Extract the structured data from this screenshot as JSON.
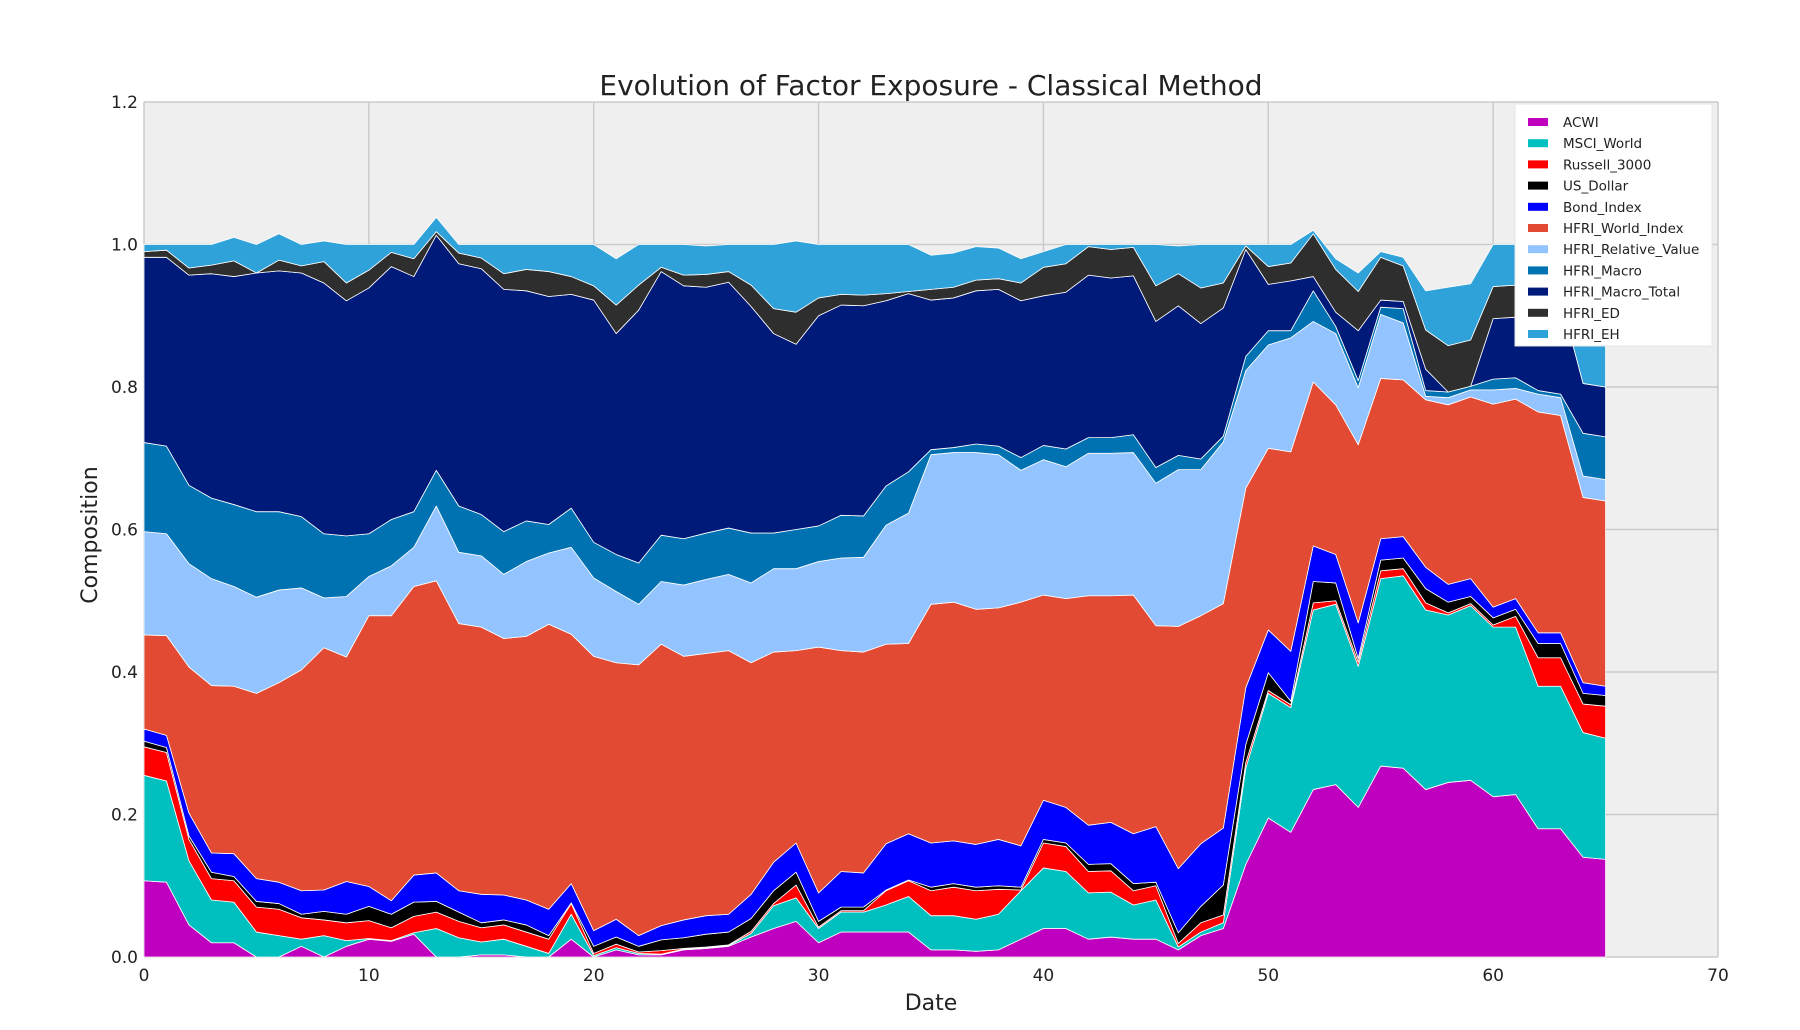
{
  "chart_data": {
    "type": "area",
    "stacked": true,
    "title": "Evolution of Factor Exposure - Classical Method",
    "xlabel": "Date",
    "ylabel": "Composition",
    "xlim": [
      0,
      70
    ],
    "ylim": [
      0,
      1.2
    ],
    "x_ticks": [
      "0",
      "10",
      "20",
      "30",
      "40",
      "50",
      "60",
      "70"
    ],
    "y_ticks": [
      "0.0",
      "0.2",
      "0.4",
      "0.6",
      "0.8",
      "1.0",
      "1.2"
    ],
    "grid": true,
    "legend_position": "top-right",
    "x": [
      0,
      1,
      2,
      3,
      4,
      5,
      6,
      7,
      8,
      9,
      10,
      11,
      12,
      13,
      14,
      15,
      16,
      17,
      18,
      19,
      20,
      21,
      22,
      23,
      24,
      25,
      26,
      27,
      28,
      29,
      30,
      31,
      32,
      33,
      34,
      35,
      36,
      37,
      38,
      39,
      40,
      41,
      42,
      43,
      44,
      45,
      46,
      47,
      48,
      49,
      50,
      51,
      52,
      53,
      54,
      55,
      56,
      57,
      58,
      59,
      60,
      61,
      62,
      63,
      64,
      65
    ],
    "series": [
      {
        "name": "ACWI",
        "color": "#bf00bf",
        "values": [
          0.107,
          0.105,
          0.045,
          0.02,
          0.02,
          0,
          0,
          0.015,
          0,
          0.015,
          0.025,
          0.022,
          0.032,
          0,
          0,
          0.003,
          0.003,
          0,
          0,
          0.025,
          0,
          0.01,
          0.003,
          0.003,
          0.01,
          0.012,
          0.015,
          0.028,
          0.04,
          0.05,
          0.02,
          0.035,
          0.035,
          0.035,
          0.035,
          0.01,
          0.01,
          0.008,
          0.01,
          0.025,
          0.04,
          0.04,
          0.025,
          0.028,
          0.025,
          0.025,
          0.01,
          0.03,
          0.04,
          0.13,
          0.195,
          0.175,
          0.235,
          0.242,
          0.21,
          0.268,
          0.265,
          0.235,
          0.245,
          0.248,
          0.225,
          0.228,
          0.18,
          0.18,
          0.14,
          0.137
        ]
      },
      {
        "name": "MSCI_World",
        "color": "#00bfbf",
        "values": [
          0.148,
          0.142,
          0.09,
          0.06,
          0.057,
          0.035,
          0.03,
          0.01,
          0.03,
          0.008,
          0.001,
          0.001,
          0.002,
          0.04,
          0.027,
          0.018,
          0.022,
          0.015,
          0.005,
          0.035,
          0.002,
          0.003,
          0.002,
          0.001,
          0.001,
          0.001,
          0.001,
          0.005,
          0.032,
          0.033,
          0.02,
          0.028,
          0.028,
          0.038,
          0.05,
          0.048,
          0.048,
          0.045,
          0.05,
          0.068,
          0.085,
          0.08,
          0.065,
          0.063,
          0.048,
          0.055,
          0.004,
          0.005,
          0.008,
          0.135,
          0.175,
          0.175,
          0.252,
          0.253,
          0.198,
          0.263,
          0.27,
          0.252,
          0.235,
          0.245,
          0.238,
          0.235,
          0.2,
          0.2,
          0.175,
          0.17
        ]
      },
      {
        "name": "Russell_3000",
        "color": "#ff0000",
        "values": [
          0.04,
          0.04,
          0.03,
          0.03,
          0.03,
          0.035,
          0.037,
          0.03,
          0.022,
          0.025,
          0.025,
          0.018,
          0.023,
          0.023,
          0.023,
          0.02,
          0.02,
          0.02,
          0.02,
          0.015,
          0.003,
          0.005,
          0.002,
          0.005,
          0.001,
          0.001,
          0.001,
          0.003,
          0.003,
          0.018,
          0.002,
          0.002,
          0.002,
          0.02,
          0.022,
          0.035,
          0.04,
          0.04,
          0.035,
          0.001,
          0.035,
          0.035,
          0.03,
          0.03,
          0.02,
          0.02,
          0.005,
          0.013,
          0.011,
          0.008,
          0.004,
          0.004,
          0.01,
          0.005,
          0.006,
          0.011,
          0.01,
          0.01,
          0.003,
          0.003,
          0.003,
          0.015,
          0.04,
          0.04,
          0.04,
          0.045
        ]
      },
      {
        "name": "US_Dollar",
        "color": "#000000",
        "values": [
          0.008,
          0.007,
          0.005,
          0.009,
          0.006,
          0.008,
          0.008,
          0.005,
          0.012,
          0.012,
          0.02,
          0.019,
          0.02,
          0.015,
          0.013,
          0.007,
          0.007,
          0.01,
          0.005,
          0.001,
          0.01,
          0.01,
          0.008,
          0.015,
          0.015,
          0.018,
          0.018,
          0.018,
          0.018,
          0.018,
          0.008,
          0.005,
          0.005,
          0.001,
          0.001,
          0.005,
          0.005,
          0.005,
          0.005,
          0.004,
          0.005,
          0.005,
          0.01,
          0.01,
          0.01,
          0.005,
          0.015,
          0.023,
          0.042,
          0.025,
          0.025,
          0.005,
          0.03,
          0.025,
          0.005,
          0.015,
          0.015,
          0.02,
          0.015,
          0.01,
          0.01,
          0.01,
          0.02,
          0.02,
          0.015,
          0.015
        ]
      },
      {
        "name": "Bond_Index",
        "color": "#0000ff",
        "values": [
          0.017,
          0.017,
          0.032,
          0.027,
          0.032,
          0.032,
          0.03,
          0.033,
          0.03,
          0.046,
          0.028,
          0.019,
          0.038,
          0.04,
          0.03,
          0.04,
          0.035,
          0.035,
          0.037,
          0.027,
          0.022,
          0.025,
          0.015,
          0.02,
          0.025,
          0.026,
          0.025,
          0.034,
          0.04,
          0.041,
          0.04,
          0.05,
          0.048,
          0.065,
          0.065,
          0.062,
          0.06,
          0.06,
          0.065,
          0.058,
          0.055,
          0.05,
          0.055,
          0.058,
          0.07,
          0.078,
          0.09,
          0.088,
          0.08,
          0.08,
          0.06,
          0.07,
          0.05,
          0.04,
          0.05,
          0.03,
          0.03,
          0.03,
          0.025,
          0.025,
          0.015,
          0.015,
          0.015,
          0.015,
          0.015,
          0.013
        ]
      },
      {
        "name": "HFRI_World_Index",
        "color": "#e24a33",
        "values": [
          0.132,
          0.14,
          0.205,
          0.235,
          0.235,
          0.26,
          0.28,
          0.31,
          0.34,
          0.315,
          0.38,
          0.4,
          0.405,
          0.41,
          0.375,
          0.375,
          0.36,
          0.37,
          0.4,
          0.35,
          0.385,
          0.36,
          0.38,
          0.395,
          0.37,
          0.368,
          0.37,
          0.325,
          0.295,
          0.27,
          0.345,
          0.31,
          0.31,
          0.28,
          0.267,
          0.335,
          0.335,
          0.33,
          0.325,
          0.342,
          0.288,
          0.293,
          0.322,
          0.318,
          0.335,
          0.282,
          0.34,
          0.32,
          0.315,
          0.28,
          0.255,
          0.28,
          0.23,
          0.21,
          0.25,
          0.225,
          0.22,
          0.235,
          0.252,
          0.255,
          0.285,
          0.28,
          0.31,
          0.305,
          0.26,
          0.26
        ]
      },
      {
        "name": "HFRI_Relative_Value",
        "color": "#94c4ff",
        "values": [
          0.145,
          0.143,
          0.145,
          0.15,
          0.14,
          0.135,
          0.13,
          0.115,
          0.07,
          0.085,
          0.055,
          0.07,
          0.055,
          0.105,
          0.1,
          0.1,
          0.09,
          0.105,
          0.1,
          0.122,
          0.11,
          0.1,
          0.085,
          0.088,
          0.1,
          0.104,
          0.107,
          0.112,
          0.117,
          0.115,
          0.12,
          0.13,
          0.133,
          0.167,
          0.183,
          0.21,
          0.21,
          0.22,
          0.215,
          0.185,
          0.19,
          0.185,
          0.2,
          0.2,
          0.2,
          0.2,
          0.22,
          0.205,
          0.227,
          0.165,
          0.145,
          0.16,
          0.085,
          0.1,
          0.08,
          0.09,
          0.08,
          0.005,
          0.01,
          0.01,
          0.02,
          0.015,
          0.025,
          0.025,
          0.03,
          0.03
        ]
      },
      {
        "name": "HFRI_Macro",
        "color": "#0072b2",
        "values": [
          0.125,
          0.123,
          0.11,
          0.113,
          0.115,
          0.12,
          0.11,
          0.1,
          0.09,
          0.085,
          0.06,
          0.065,
          0.05,
          0.05,
          0.065,
          0.058,
          0.06,
          0.057,
          0.04,
          0.055,
          0.05,
          0.052,
          0.058,
          0.065,
          0.065,
          0.065,
          0.065,
          0.07,
          0.05,
          0.055,
          0.05,
          0.06,
          0.058,
          0.055,
          0.058,
          0.007,
          0.007,
          0.012,
          0.012,
          0.018,
          0.02,
          0.025,
          0.022,
          0.022,
          0.025,
          0.022,
          0.02,
          0.015,
          0.008,
          0.02,
          0.02,
          0.01,
          0.043,
          0.01,
          0.01,
          0.01,
          0.02,
          0.008,
          0.008,
          0.005,
          0.015,
          0.015,
          0.005,
          0.005,
          0.06,
          0.06
        ]
      },
      {
        "name": "HFRI_Macro_Total",
        "color": "#001a7a",
        "values": [
          0.26,
          0.265,
          0.295,
          0.315,
          0.32,
          0.335,
          0.338,
          0.342,
          0.352,
          0.33,
          0.345,
          0.355,
          0.33,
          0.33,
          0.34,
          0.345,
          0.34,
          0.323,
          0.32,
          0.3,
          0.34,
          0.31,
          0.355,
          0.37,
          0.355,
          0.345,
          0.345,
          0.318,
          0.28,
          0.26,
          0.295,
          0.295,
          0.295,
          0.26,
          0.25,
          0.21,
          0.21,
          0.215,
          0.22,
          0.22,
          0.21,
          0.22,
          0.228,
          0.224,
          0.223,
          0.205,
          0.21,
          0.19,
          0.18,
          0.15,
          0.065,
          0.07,
          0.02,
          0.02,
          0.07,
          0.01,
          0.01,
          0.03,
          0.0,
          0.0,
          0.085,
          0.085,
          0.135,
          0.135,
          0.07,
          0.07
        ]
      },
      {
        "name": "HFRI_ED",
        "color": "#2e2e2e",
        "values": [
          0.008,
          0.01,
          0.01,
          0.012,
          0.022,
          0.0,
          0.015,
          0.01,
          0.03,
          0.025,
          0.025,
          0.02,
          0.025,
          0.005,
          0.015,
          0.015,
          0.022,
          0.03,
          0.035,
          0.025,
          0.02,
          0.04,
          0.035,
          0.006,
          0.015,
          0.018,
          0.015,
          0.03,
          0.035,
          0.045,
          0.025,
          0.015,
          0.015,
          0.01,
          0.003,
          0.015,
          0.015,
          0.015,
          0.015,
          0.025,
          0.04,
          0.04,
          0.04,
          0.04,
          0.04,
          0.05,
          0.045,
          0.05,
          0.035,
          0.005,
          0.025,
          0.025,
          0.06,
          0.06,
          0.055,
          0.06,
          0.05,
          0.055,
          0.065,
          0.065,
          0.045,
          0.045,
          0.0,
          0.0,
          0.0,
          0.0
        ]
      },
      {
        "name": "HFRI_EH",
        "color": "#30a2da",
        "values": [
          0.01,
          0.008,
          0.033,
          0.029,
          0.033,
          0.04,
          0.037,
          0.03,
          0.029,
          0.054,
          0.036,
          0.011,
          0.02,
          0.02,
          0.012,
          0.019,
          0.041,
          0.035,
          0.038,
          0.045,
          0.058,
          0.065,
          0.057,
          0.032,
          0.043,
          0.04,
          0.038,
          0.057,
          0.09,
          0.1,
          0.075,
          0.07,
          0.071,
          0.069,
          0.066,
          0.048,
          0.048,
          0.047,
          0.043,
          0.034,
          0.022,
          0.027,
          0.003,
          0.007,
          0.004,
          0.058,
          0.039,
          0.061,
          0.054,
          0.002,
          0.031,
          0.026,
          0.005,
          0.015,
          0.026,
          0.008,
          0.012,
          0.055,
          0.082,
          0.079,
          0.059,
          0.057,
          0.07,
          0.075,
          0.18,
          0.18
        ]
      }
    ]
  }
}
